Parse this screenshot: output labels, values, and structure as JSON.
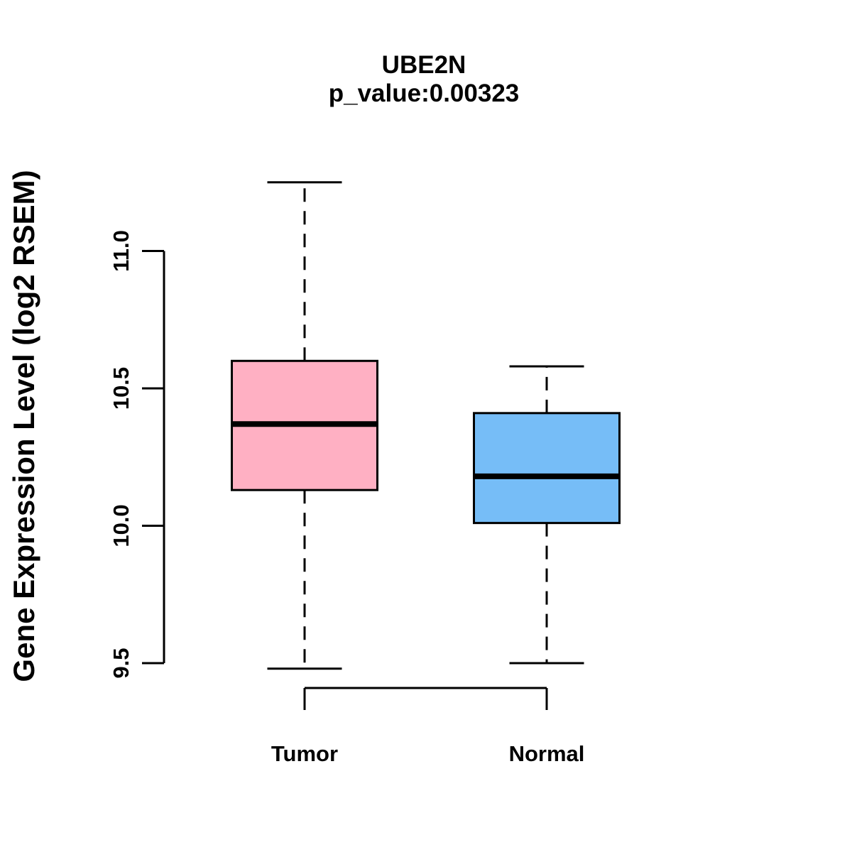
{
  "chart_data": {
    "type": "boxplot",
    "title": "UBE2N",
    "subtitle": "p_value:0.00323",
    "ylabel": "Gene Expression Level (log2 RSEM)",
    "xlabel": "",
    "categories": [
      "Tumor",
      "Normal"
    ],
    "ytick_labels": [
      "9.5",
      "10.0",
      "10.5",
      "11.0"
    ],
    "ytick_values": [
      9.5,
      10.0,
      10.5,
      11.0
    ],
    "ylim": [
      9.35,
      11.35
    ],
    "grid": false,
    "legend": null,
    "whisker_line_style": "dashed",
    "background_color": "#FFFFFF",
    "border_color": "#000000",
    "series": [
      {
        "name": "Tumor",
        "fill_color": "#FFB0C3",
        "whisker_low": 9.48,
        "q1": 10.13,
        "median": 10.37,
        "q3": 10.6,
        "whisker_high": 11.25
      },
      {
        "name": "Normal",
        "fill_color": "#76BDF7",
        "whisker_low": 9.5,
        "q1": 10.01,
        "median": 10.18,
        "q3": 10.41,
        "whisker_high": 10.58
      }
    ]
  }
}
